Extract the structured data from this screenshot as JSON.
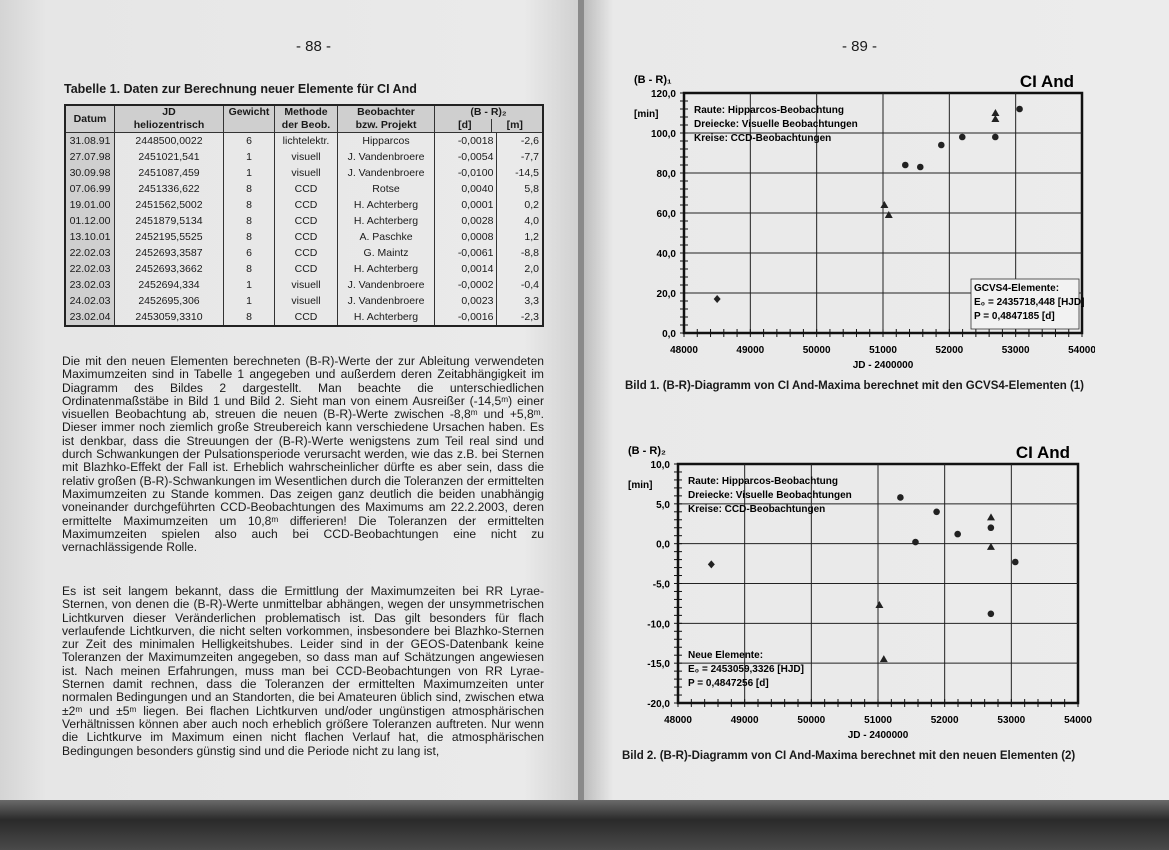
{
  "left_page": {
    "page_number": "- 88 -",
    "table": {
      "caption": "Tabelle 1. Daten zur Berechnung neuer Elemente für CI And",
      "headers": [
        "Datum",
        "JD",
        "heliozentrisch",
        "Gewicht",
        "Methode",
        "der Beob.",
        "Beobachter",
        "bzw. Projekt",
        "(B - R)₂",
        "[d]",
        "[m]"
      ],
      "rows": [
        [
          "31.08.91",
          "2448500,0022",
          "6",
          "lichtelektr.",
          "Hipparcos",
          "-0,0018",
          "-2,6"
        ],
        [
          "27.07.98",
          "2451021,541",
          "1",
          "visuell",
          "J. Vandenbroere",
          "-0,0054",
          "-7,7"
        ],
        [
          "30.09.98",
          "2451087,459",
          "1",
          "visuell",
          "J. Vandenbroere",
          "-0,0100",
          "-14,5"
        ],
        [
          "07.06.99",
          "2451336,622",
          "8",
          "CCD",
          "Rotse",
          "0,0040",
          "5,8"
        ],
        [
          "19.01.00",
          "2451562,5002",
          "8",
          "CCD",
          "H. Achterberg",
          "0,0001",
          "0,2"
        ],
        [
          "01.12.00",
          "2451879,5134",
          "8",
          "CCD",
          "H. Achterberg",
          "0,0028",
          "4,0"
        ],
        [
          "13.10.01",
          "2452195,5525",
          "8",
          "CCD",
          "A. Paschke",
          "0,0008",
          "1,2"
        ],
        [
          "22.02.03",
          "2452693,3587",
          "6",
          "CCD",
          "G. Maintz",
          "-0,0061",
          "-8,8"
        ],
        [
          "22.02.03",
          "2452693,3662",
          "8",
          "CCD",
          "H. Achterberg",
          "0,0014",
          "2,0"
        ],
        [
          "23.02.03",
          "2452694,334",
          "1",
          "visuell",
          "J. Vandenbroere",
          "-0,0002",
          "-0,4"
        ],
        [
          "24.02.03",
          "2452695,306",
          "1",
          "visuell",
          "J. Vandenbroere",
          "0,0023",
          "3,3"
        ],
        [
          "23.02.04",
          "2453059,3310",
          "8",
          "CCD",
          "H. Achterberg",
          "-0,0016",
          "-2,3"
        ]
      ]
    },
    "paragraphs": [
      "Die mit den neuen Elementen berechneten (B-R)-Werte der zur Ableitung verwendeten Maximumzeiten sind in Tabelle 1 angegeben und außerdem deren Zeitabhängigkeit im Diagramm des Bildes 2 dargestellt. Man beachte die unterschiedlichen Ordinatenmaßstäbe in Bild 1 und Bild 2. Sieht man von einem Ausreißer (-14,5ᵐ) einer visuellen Beobachtung ab, streuen die neuen (B-R)-Werte zwischen -8,8ᵐ und +5,8ᵐ. Dieser immer noch ziemlich große Streubereich kann verschiedene Ursachen haben. Es ist denkbar, dass die Streuungen der (B-R)-Werte wenigstens zum Teil real sind und durch Schwankungen der Pulsationsperiode verursacht werden, wie das z.B. bei Sternen mit Blazhko-Effekt der Fall ist. Erheblich wahrscheinlicher dürfte es aber sein, dass die relativ großen (B-R)-Schwankungen im Wesentlichen durch die Toleranzen der ermittelten Maximumzeiten zu Stande kommen. Das zeigen ganz deutlich die beiden unabhängig voneinander durchgeführten CCD-Beobachtungen des Maximums am 22.2.2003, deren ermittelte Maximumzeiten um 10,8ᵐ differieren! Die Toleranzen der ermittelten Maximumzeiten spielen also auch bei CCD-Beobachtungen eine nicht zu vernachlässigende Rolle.",
      "Es ist seit langem bekannt, dass die Ermittlung der Maximumzeiten bei RR Lyrae-Sternen, von denen die (B-R)-Werte unmittelbar abhängen, wegen der unsymmetrischen Lichtkurven dieser Veränderlichen problematisch ist. Das gilt besonders für flach verlaufende Lichtkurven, die nicht selten vorkommen, insbesondere bei Blazhko-Sternen zur Zeit des minimalen Helligkeitshubes. Leider sind in der GEOS-Datenbank keine Toleranzen der Maximumzeiten angegeben, so dass man auf Schätzungen angewiesen ist. Nach meinen Erfahrungen, muss man bei CCD-Beobachtungen von RR Lyrae-Sternen damit rechnen, dass die Toleranzen der ermittelten Maximumzeiten unter normalen Bedingungen und an Standorten, die bei Amateuren üblich sind, zwischen etwa ±2ᵐ und ±5ᵐ liegen. Bei flachen Lichtkurven und/oder ungünstigen atmosphärischen Verhältnissen können aber auch noch erheblich größere Toleranzen auftreten. Nur wenn die Lichtkurve im Maximum einen nicht flachen Verlauf hat, die atmosphärischen Bedingungen besonders günstig sind und die Periode nicht zu lang ist,"
    ]
  },
  "right_page": {
    "page_number": "- 89 -",
    "figure1_caption": "Bild 1. (B-R)-Diagramm von CI And-Maxima berechnet mit den GCVS4-Elementen (1)",
    "figure2_caption": "Bild 2. (B-R)-Diagramm von CI And-Maxima berechnet mit den neuen Elementen (2)"
  },
  "chart_data": [
    {
      "type": "scatter",
      "title": "CI And",
      "ylabel": "(B - R)₁",
      "yunit": "[min]",
      "xlabel": "JD - 2400000",
      "xlim": [
        48000,
        54000
      ],
      "ylim": [
        0,
        120
      ],
      "xticks": [
        "48000",
        "49000",
        "50000",
        "51000",
        "52000",
        "53000",
        "54000"
      ],
      "yticks": [
        "0,0",
        "20,0",
        "40,0",
        "60,0",
        "80,0",
        "100,0",
        "120,0"
      ],
      "grid": true,
      "legend_lines": [
        "Raute:  Hipparcos-Beobachtung",
        "Dreiecke: Visuelle Beobachtungen",
        "Kreise:  CCD-Beobachtungen"
      ],
      "legend_position": "top-left",
      "elements_box": {
        "title": "GCVS4-Elemente:",
        "e0": "E₀ = 2435718,448 [HJD]",
        "p": "P  = 0,4847185 [d]",
        "position": "bottom-right"
      },
      "series": [
        {
          "name": "Raute",
          "marker": "diamond",
          "points": [
            [
              48500,
              17
            ]
          ]
        },
        {
          "name": "Dreiecke",
          "marker": "triangle",
          "points": [
            [
              51021,
              64
            ],
            [
              51087,
              59
            ],
            [
              52694,
              107
            ],
            [
              52695,
              110
            ]
          ]
        },
        {
          "name": "Kreise",
          "marker": "circle",
          "points": [
            [
              51336,
              84
            ],
            [
              51562,
              83
            ],
            [
              51879,
              94
            ],
            [
              52195,
              98
            ],
            [
              52693,
              98
            ],
            [
              53059,
              112
            ]
          ]
        }
      ]
    },
    {
      "type": "scatter",
      "title": "CI And",
      "ylabel": "(B - R)₂",
      "yunit": "[min]",
      "xlabel": "JD - 2400000",
      "xlim": [
        48000,
        54000
      ],
      "ylim": [
        -20,
        10
      ],
      "xticks": [
        "48000",
        "49000",
        "50000",
        "51000",
        "52000",
        "53000",
        "54000"
      ],
      "yticks": [
        "-20,0",
        "-15,0",
        "-10,0",
        "-5,0",
        "0,0",
        "5,0",
        "10,0"
      ],
      "grid": true,
      "legend_lines": [
        "Raute:  Hipparcos-Beobachtung",
        "Dreiecke: Visuelle Beobachtungen",
        "Kreise: CCD-Beobachtungen"
      ],
      "legend_position": "top-left",
      "elements_box": {
        "title": "Neue Elemente:",
        "e0": "E₀ = 2453059,3326 [HJD]",
        "p": "P  =  0,4847256 [d]",
        "position": "bottom-left"
      },
      "series": [
        {
          "name": "Raute",
          "marker": "diamond",
          "points": [
            [
              48500,
              -2.6
            ]
          ]
        },
        {
          "name": "Dreiecke",
          "marker": "triangle",
          "points": [
            [
              51021,
              -7.7
            ],
            [
              51087,
              -14.5
            ],
            [
              52694,
              -0.4
            ],
            [
              52695,
              3.3
            ]
          ]
        },
        {
          "name": "Kreise",
          "marker": "circle",
          "points": [
            [
              51336,
              5.8
            ],
            [
              51562,
              0.2
            ],
            [
              51879,
              4.0
            ],
            [
              52195,
              1.2
            ],
            [
              52693,
              -8.8
            ],
            [
              52693,
              2.0
            ],
            [
              53059,
              -2.3
            ]
          ]
        }
      ]
    }
  ]
}
